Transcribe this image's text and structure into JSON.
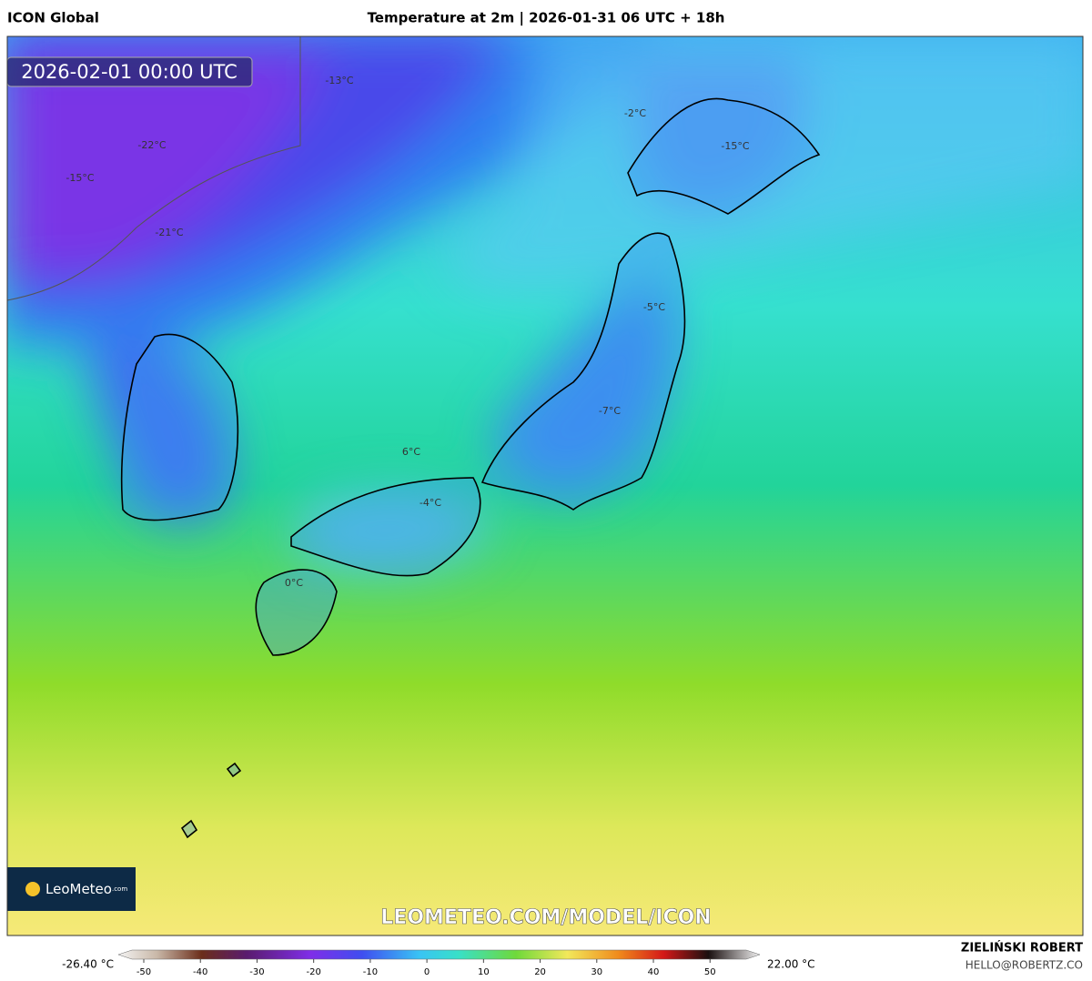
{
  "header": {
    "left": "ICON Global",
    "center": "Temperature at 2m | 2026-01-31 06 UTC + 18h"
  },
  "map": {
    "valid_time": "2026-02-01 00:00 UTC",
    "labels": [
      "-13°C",
      "-22°C",
      "-15°C",
      "-21°C",
      "-2°C",
      "-15°C",
      "-5°C",
      "-7°C",
      "6°C",
      "-4°C",
      "0°C"
    ],
    "watermark": "LEOMETEO.COM/MODEL/ICON",
    "logo": {
      "name": "LeoMeteo",
      "suffix": ".com"
    }
  },
  "colorbar": {
    "min_label": "-26.40 °C",
    "max_label": "22.00 °C",
    "lim": [
      -54.5,
      58.8
    ],
    "ticks": [
      -50,
      -40,
      -30,
      -20,
      -10,
      0,
      10,
      20,
      30,
      40,
      50
    ]
  },
  "footer": {
    "author": "ZIELIŃSKI ROBERT",
    "email": "HELLO@ROBERTZ.CO"
  }
}
